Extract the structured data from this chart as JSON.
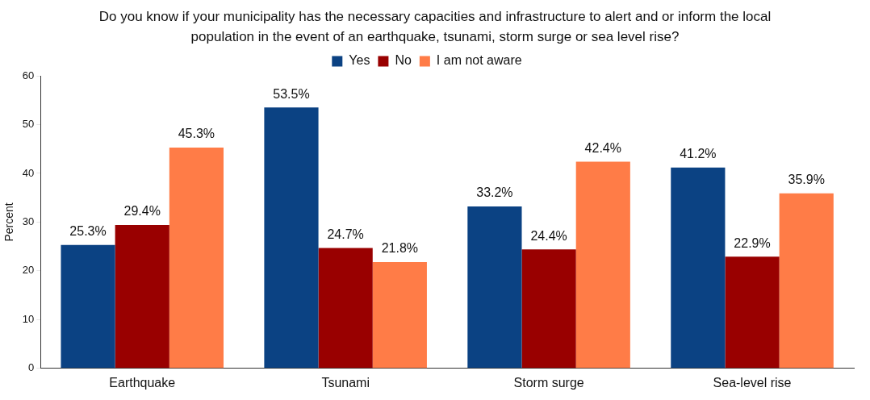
{
  "chart_data": {
    "type": "bar",
    "title": "Do you know if your municipality has the necessary capacities and infrastructure to alert and or inform the local population in the event of an earthquake, tsunami, storm surge or sea level rise?",
    "ylabel": "Percent",
    "categories": [
      "Earthquake",
      "Tsunami",
      "Storm surge",
      "Sea-level rise"
    ],
    "series": [
      {
        "name": "Yes",
        "color": "#0b4283",
        "values": [
          25.3,
          53.5,
          33.2,
          41.2
        ],
        "value_labels": [
          "25.3%",
          "53.5%",
          "33.2%",
          "41.2%"
        ]
      },
      {
        "name": "No",
        "color": "#990000",
        "values": [
          29.4,
          24.7,
          24.4,
          22.9
        ],
        "value_labels": [
          "29.4%",
          "24.7%",
          "24.4%",
          "22.9%"
        ]
      },
      {
        "name": "I am not aware",
        "color": "#ff7c47",
        "values": [
          45.3,
          21.8,
          42.4,
          35.9
        ],
        "value_labels": [
          "45.3%",
          "21.8%",
          "42.4%",
          "35.9%"
        ]
      }
    ],
    "ylim": [
      0,
      60
    ],
    "yticks": [
      0,
      10,
      20,
      30,
      40,
      50,
      60
    ],
    "grid": false,
    "legend": "top"
  }
}
